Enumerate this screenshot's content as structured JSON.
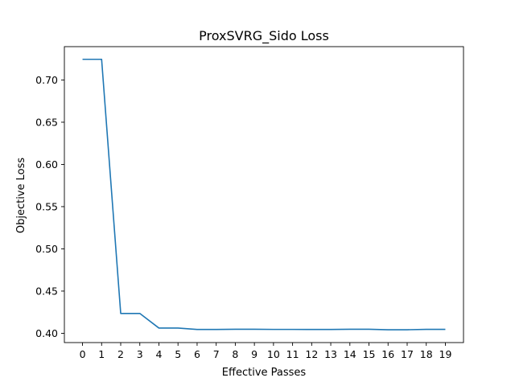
{
  "chart_data": {
    "type": "line",
    "title": "ProxSVRG_Sido Loss",
    "xlabel": "Effective Passes",
    "ylabel": "Objective Loss",
    "x": [
      0,
      1,
      2,
      3,
      4,
      5,
      6,
      7,
      8,
      9,
      10,
      11,
      12,
      13,
      14,
      15,
      16,
      17,
      18,
      19
    ],
    "series": [
      {
        "values": [
          0.7245,
          0.7245,
          0.4235,
          0.4235,
          0.4062,
          0.4062,
          0.4045,
          0.4045,
          0.4048,
          0.4048,
          0.4046,
          0.4046,
          0.4045,
          0.4045,
          0.4048,
          0.4048,
          0.4042,
          0.4042,
          0.4047,
          0.4047
        ],
        "color": "#1f77b4"
      }
    ],
    "xlim": [
      -0.95,
      19.95
    ],
    "ylim": [
      0.389,
      0.7395
    ],
    "xticks": [
      0,
      1,
      2,
      3,
      4,
      5,
      6,
      7,
      8,
      9,
      10,
      11,
      12,
      13,
      14,
      15,
      16,
      17,
      18,
      19
    ],
    "yticks": [
      0.4,
      0.45,
      0.5,
      0.55,
      0.6,
      0.65,
      0.7
    ],
    "ytick_labels": [
      "0.40",
      "0.45",
      "0.50",
      "0.55",
      "0.60",
      "0.65",
      "0.70"
    ],
    "grid": false,
    "legend": "none"
  }
}
